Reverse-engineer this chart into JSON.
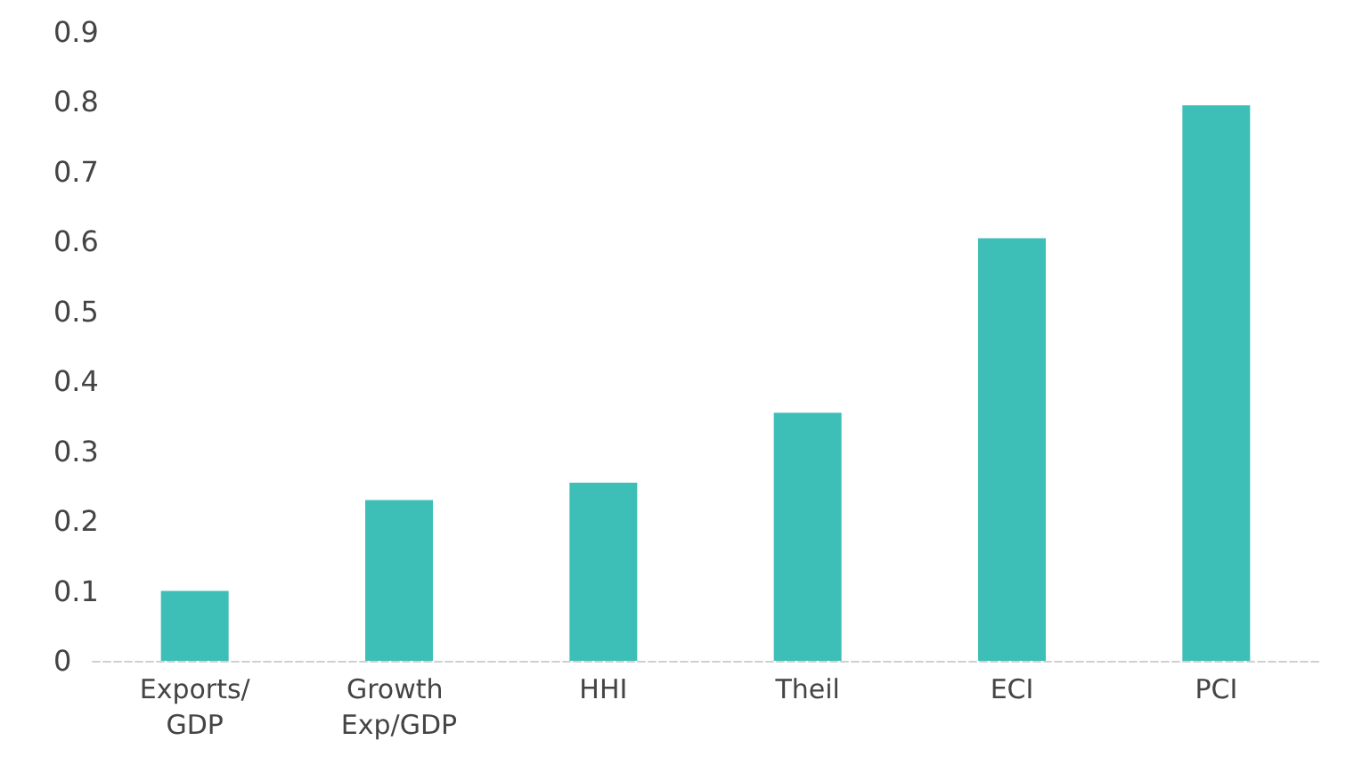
{
  "chart_data": {
    "type": "bar",
    "categories": [
      "Exports/GDP",
      "Growth Exp/GDP",
      "HHI",
      "Theil",
      "ECI",
      "PCI"
    ],
    "values": [
      0.1,
      0.23,
      0.255,
      0.355,
      0.605,
      0.795
    ],
    "color": "#3dbfb8",
    "ylim": [
      0,
      0.9
    ],
    "yticks": [
      0,
      0.1,
      0.2,
      0.3,
      0.4,
      0.5,
      0.6,
      0.7,
      0.8,
      0.9
    ],
    "grid": false
  }
}
